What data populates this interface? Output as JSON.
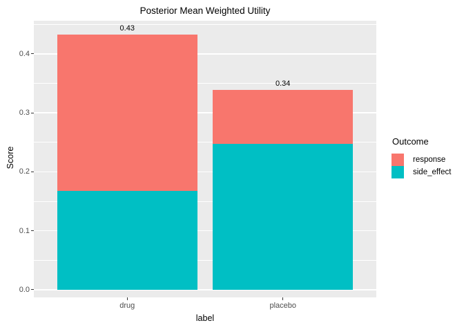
{
  "chart_data": {
    "type": "bar",
    "stacked": true,
    "title": "Posterior Mean Weighted Utility",
    "xlabel": "label",
    "ylabel": "Score",
    "categories": [
      "drug",
      "placebo"
    ],
    "series": [
      {
        "name": "side_effect",
        "color": "#00BFC4",
        "values": [
          0.168,
          0.247
        ]
      },
      {
        "name": "response",
        "color": "#F8766D",
        "values": [
          0.265,
          0.092
        ]
      }
    ],
    "totals": [
      0.433,
      0.339
    ],
    "bar_labels": [
      "0.43",
      "0.34"
    ],
    "y_ticks": [
      0.0,
      0.1,
      0.2,
      0.3,
      0.4
    ],
    "y_tick_labels": [
      "0.0",
      "0.1",
      "0.2",
      "0.3",
      "0.4"
    ],
    "y_minor_ticks": [
      0.05,
      0.15,
      0.25,
      0.35,
      0.45
    ],
    "ylim": [
      -0.0129,
      0.4561
    ],
    "grid": true,
    "legend_position": "right"
  },
  "legend": {
    "title": "Outcome",
    "items": [
      {
        "label": "response",
        "color": "#F8766D"
      },
      {
        "label": "side_effect",
        "color": "#00BFC4"
      }
    ]
  },
  "colors": {
    "page_bg": "#FFFFFF",
    "panel_bg": "#EBEBEB",
    "grid": "#FFFFFF",
    "tick_label": "#4D4D4D",
    "tick_mark": "#333333"
  }
}
